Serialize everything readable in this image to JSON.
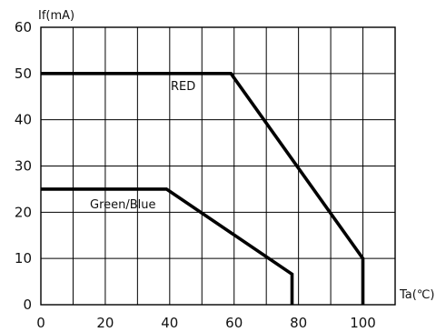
{
  "chart_data": {
    "type": "line",
    "xlabel": "Ta(℃)",
    "ylabel": "If(mA)",
    "xlim": [
      0,
      110
    ],
    "ylim": [
      0,
      60
    ],
    "x_ticks": [
      0,
      20,
      40,
      60,
      80,
      100
    ],
    "y_ticks": [
      0,
      10,
      20,
      30,
      40,
      50,
      60
    ],
    "x_grid_step": 10,
    "grid": true,
    "series": [
      {
        "name": "RED",
        "points": [
          [
            0,
            50
          ],
          [
            59,
            50
          ],
          [
            100,
            10
          ],
          [
            100,
            0
          ]
        ]
      },
      {
        "name": "Green/Blue",
        "points": [
          [
            0,
            25
          ],
          [
            39,
            25
          ],
          [
            78,
            6.6
          ],
          [
            78,
            0
          ]
        ]
      }
    ]
  }
}
